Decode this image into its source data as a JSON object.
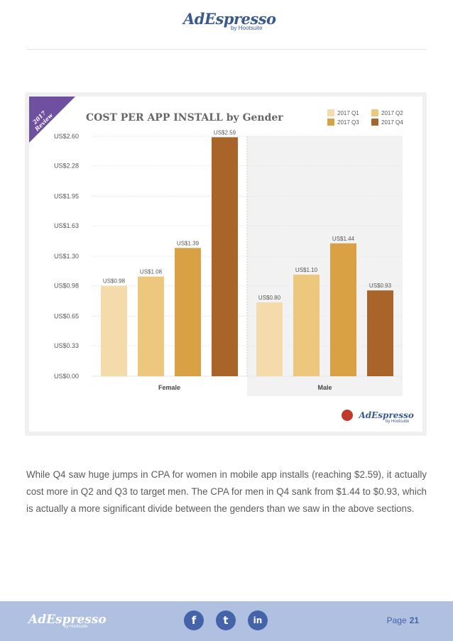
{
  "header": {
    "logo_text": "AdEspresso",
    "logo_by": "by Hootsuite"
  },
  "ribbon": {
    "line1": "2017",
    "line2": "Review"
  },
  "chart_data": {
    "type": "bar",
    "title": "COST PER APP INSTALL by Gender",
    "xlabel": "",
    "ylabel": "",
    "categories": [
      "Female",
      "Male"
    ],
    "series": [
      {
        "name": "2017 Q1",
        "values": [
          0.98,
          0.8
        ],
        "labels": [
          "US$0.98",
          "US$0.80"
        ],
        "color": "#f5dbac"
      },
      {
        "name": "2017 Q2",
        "values": [
          1.08,
          1.1
        ],
        "labels": [
          "US$1.08",
          "US$1.10"
        ],
        "color": "#edc77e"
      },
      {
        "name": "2017 Q3",
        "values": [
          1.39,
          1.44
        ],
        "labels": [
          "US$1.39",
          "US$1.44"
        ],
        "color": "#d9a044"
      },
      {
        "name": "2017 Q4",
        "values": [
          2.59,
          0.93
        ],
        "labels": [
          "US$2.59",
          "US$0.93"
        ],
        "color": "#a9642a"
      }
    ],
    "ylim": [
      0,
      2.6
    ],
    "yticks": [
      0,
      0.33,
      0.65,
      0.98,
      1.3,
      1.63,
      1.95,
      2.28,
      2.6
    ],
    "ytick_labels": [
      "US$0.00",
      "US$0.33",
      "US$0.65",
      "US$0.98",
      "US$1.30",
      "US$1.63",
      "US$1.95",
      "US$2.28",
      "US$2.60"
    ],
    "grid": true,
    "legend": "top-right"
  },
  "chart_logo": {
    "text": "AdEspresso",
    "by": "by Hootsuite"
  },
  "body": {
    "paragraph": "While Q4 saw huge jumps in CPA for women in mobile app installs (reaching $2.59), it actually cost more in Q2 and Q3 to target men. The CPA for men in Q4 sank from $1.44 to $0.93, which is actually a more significant divide between the genders than we saw in the above sections."
  },
  "footer": {
    "logo_text": "AdEspresso",
    "logo_by": "by Hootsuite",
    "social": [
      {
        "icon": "facebook-icon",
        "glyph": "f"
      },
      {
        "icon": "twitter-icon",
        "glyph": "t"
      },
      {
        "icon": "linkedin-icon",
        "glyph": "in"
      }
    ],
    "page_label": "Page",
    "page_number": "21"
  }
}
